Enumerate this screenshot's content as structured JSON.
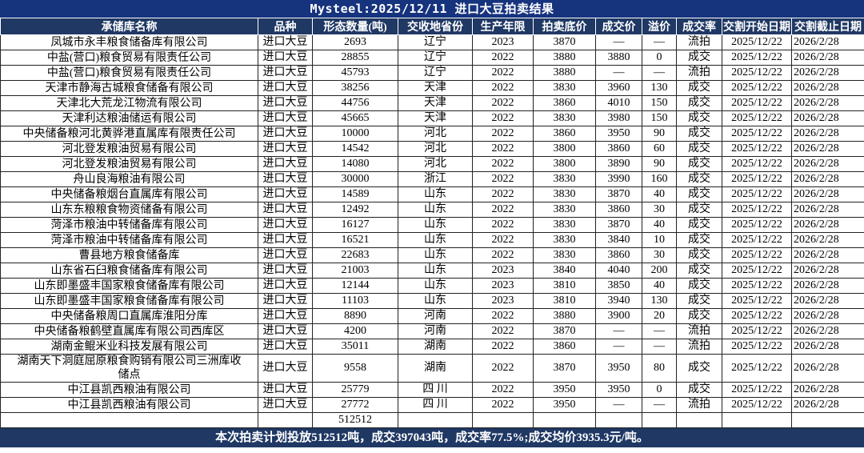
{
  "title": "Mysteel:2025/12/11 进口大豆拍卖结果",
  "colors": {
    "title_bar": "#16337E",
    "header_bg": "#1F3864",
    "footer_bg": "#1F3864",
    "header_text": "#FFFFFF",
    "body_text": "#000000"
  },
  "table": {
    "columns": [
      "承储库名称",
      "品种",
      "形态数量(吨)",
      "交收地省份",
      "生产年限",
      "拍卖底价",
      "成交价",
      "溢价",
      "成交率",
      "交割开始日期",
      "交割截止日期"
    ],
    "rows": [
      [
        "凤城市永丰粮食储备库有限公司",
        "进口大豆",
        "2693",
        "辽宁",
        "2023",
        "3870",
        "—",
        "—",
        "流拍",
        "2025/12/22",
        "2026/2/28"
      ],
      [
        "中盐(营口)粮食贸易有限责任公司",
        "进口大豆",
        "28855",
        "辽宁",
        "2022",
        "3880",
        "3880",
        "0",
        "成交",
        "2025/12/22",
        "2026/2/28"
      ],
      [
        "中盐(营口)粮食贸易有限责任公司",
        "进口大豆",
        "45793",
        "辽宁",
        "2022",
        "3880",
        "—",
        "—",
        "流拍",
        "2025/12/22",
        "2026/2/28"
      ],
      [
        "天津市静海古城粮食储备有限公司",
        "进口大豆",
        "38256",
        "天津",
        "2022",
        "3830",
        "3960",
        "130",
        "成交",
        "2025/12/22",
        "2026/2/28"
      ],
      [
        "天津北大荒龙江物流有限公司",
        "进口大豆",
        "44756",
        "天津",
        "2022",
        "3860",
        "4010",
        "150",
        "成交",
        "2025/12/22",
        "2026/2/28"
      ],
      [
        "天津利达粮油储运有限公司",
        "进口大豆",
        "45665",
        "天津",
        "2022",
        "3830",
        "3980",
        "150",
        "成交",
        "2025/12/22",
        "2026/2/28"
      ],
      [
        "中央储备粮河北黄骅港直属库有限责任公司",
        "进口大豆",
        "10000",
        "河北",
        "2022",
        "3860",
        "3950",
        "90",
        "成交",
        "2025/12/22",
        "2026/2/28"
      ],
      [
        "河北登发粮油贸易有限公司",
        "进口大豆",
        "14542",
        "河北",
        "2022",
        "3800",
        "3860",
        "60",
        "成交",
        "2025/12/22",
        "2026/2/28"
      ],
      [
        "河北登发粮油贸易有限公司",
        "进口大豆",
        "14080",
        "河北",
        "2022",
        "3800",
        "3890",
        "90",
        "成交",
        "2025/12/22",
        "2026/2/28"
      ],
      [
        "舟山良海粮油有限公司",
        "进口大豆",
        "30000",
        "浙江",
        "2022",
        "3830",
        "3990",
        "160",
        "成交",
        "2025/12/22",
        "2026/2/28"
      ],
      [
        "中央储备粮烟台直属库有限公司",
        "进口大豆",
        "14589",
        "山东",
        "2022",
        "3830",
        "3870",
        "40",
        "成交",
        "2025/12/22",
        "2026/2/28"
      ],
      [
        "山东东粮粮食物资储备有限公司",
        "进口大豆",
        "12492",
        "山东",
        "2022",
        "3830",
        "3860",
        "30",
        "成交",
        "2025/12/22",
        "2026/2/28"
      ],
      [
        "菏泽市粮油中转储备库有限公司",
        "进口大豆",
        "16127",
        "山东",
        "2022",
        "3830",
        "3870",
        "40",
        "成交",
        "2025/12/22",
        "2026/2/28"
      ],
      [
        "菏泽市粮油中转储备库有限公司",
        "进口大豆",
        "16521",
        "山东",
        "2022",
        "3830",
        "3840",
        "10",
        "成交",
        "2025/12/22",
        "2026/2/28"
      ],
      [
        "曹县地方粮食储备库",
        "进口大豆",
        "22683",
        "山东",
        "2022",
        "3830",
        "3860",
        "30",
        "成交",
        "2025/12/22",
        "2026/2/28"
      ],
      [
        "山东省石臼粮食储备库有限公司",
        "进口大豆",
        "21003",
        "山东",
        "2023",
        "3840",
        "4040",
        "200",
        "成交",
        "2025/12/22",
        "2026/2/28"
      ],
      [
        "山东即墨盛丰国家粮食储备库有限公司",
        "进口大豆",
        "12144",
        "山东",
        "2023",
        "3810",
        "3850",
        "40",
        "成交",
        "2025/12/22",
        "2026/2/28"
      ],
      [
        "山东即墨盛丰国家粮食储备库有限公司",
        "进口大豆",
        "11103",
        "山东",
        "2023",
        "3810",
        "3940",
        "130",
        "成交",
        "2025/12/22",
        "2026/2/28"
      ],
      [
        "中央储备粮周口直属库淮阳分库",
        "进口大豆",
        "8890",
        "河南",
        "2022",
        "3880",
        "3900",
        "20",
        "成交",
        "2025/12/22",
        "2026/2/28"
      ],
      [
        "中央储备粮鹤壁直属库有限公司西库区",
        "进口大豆",
        "4200",
        "河南",
        "2022",
        "3870",
        "—",
        "—",
        "流拍",
        "2025/12/22",
        "2026/2/28"
      ],
      [
        "湖南金鲲米业科技发展有限公司",
        "进口大豆",
        "35011",
        "湖南",
        "2022",
        "3860",
        "—",
        "—",
        "流拍",
        "2025/12/22",
        "2026/2/28"
      ],
      [
        "湖南天下洞庭屈原粮食购销有限公司三洲库收储点",
        "进口大豆",
        "9558",
        "湖南",
        "2022",
        "3870",
        "3950",
        "80",
        "成交",
        "2025/12/22",
        "2026/2/28"
      ],
      [
        "中江县凯西粮油有限公司",
        "进口大豆",
        "25779",
        "四 川",
        "2022",
        "3950",
        "3950",
        "0",
        "成交",
        "2025/12/22",
        "2026/2/28"
      ],
      [
        "中江县凯西粮油有限公司",
        "进口大豆",
        "27772",
        "四 川",
        "2022",
        "3950",
        "—",
        "—",
        "流拍",
        "2025/12/22",
        "2026/2/28"
      ]
    ],
    "total_row": [
      "",
      "",
      "512512",
      "",
      "",
      "",
      "",
      "",
      "",
      "",
      ""
    ]
  },
  "footer": {
    "summary": "本次拍卖计划投放512512吨，成交397043吨，成交率77.5%;成交均价3935.3元/吨。"
  }
}
